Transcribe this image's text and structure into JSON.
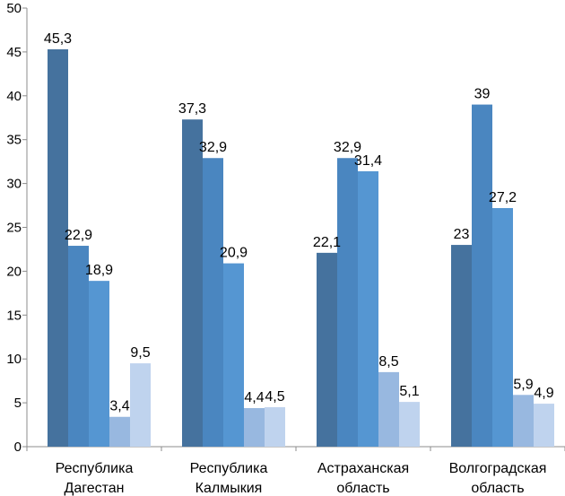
{
  "chart_data": {
    "type": "bar",
    "title": "",
    "xlabel": "",
    "ylabel": "",
    "ylim": [
      0,
      50
    ],
    "yticks": [
      0,
      5,
      10,
      15,
      20,
      25,
      30,
      35,
      40,
      45,
      50
    ],
    "gridlines": false,
    "legend": "none",
    "categories": [
      [
        "Республика",
        "Дагестан"
      ],
      [
        "Республика",
        "Калмыкия"
      ],
      [
        "Астраханская",
        "область"
      ],
      [
        "Волгоградская",
        "область"
      ]
    ],
    "series_colors": [
      "#45729E",
      "#4A86C0",
      "#5596D2",
      "#98B8E0",
      "#BFD3EE"
    ],
    "bars": [
      [
        {
          "value": 45.3,
          "label": "45,3"
        },
        {
          "value": 22.9,
          "label": "22,9"
        },
        {
          "value": 18.9,
          "label": "18,9"
        },
        {
          "value": 3.4,
          "label": "3,4"
        },
        {
          "value": 9.5,
          "label": "9,5"
        }
      ],
      [
        {
          "value": 37.3,
          "label": "37,3"
        },
        {
          "value": 32.9,
          "label": "32,9"
        },
        {
          "value": 20.9,
          "label": "20,9"
        },
        {
          "value": 4.4,
          "label": "4,4"
        },
        {
          "value": 4.5,
          "label": "4,5"
        }
      ],
      [
        {
          "value": 22.1,
          "label": "22,1"
        },
        {
          "value": 32.9,
          "label": "32,9"
        },
        {
          "value": 31.4,
          "label": "31,4"
        },
        {
          "value": 8.5,
          "label": "8,5"
        },
        {
          "value": 5.1,
          "label": "5,1"
        }
      ],
      [
        {
          "value": 23,
          "label": "23"
        },
        {
          "value": 39,
          "label": "39"
        },
        {
          "value": 27.2,
          "label": "27,2"
        },
        {
          "value": 5.9,
          "label": "5,9"
        },
        {
          "value": 4.9,
          "label": "4,9"
        }
      ]
    ]
  }
}
